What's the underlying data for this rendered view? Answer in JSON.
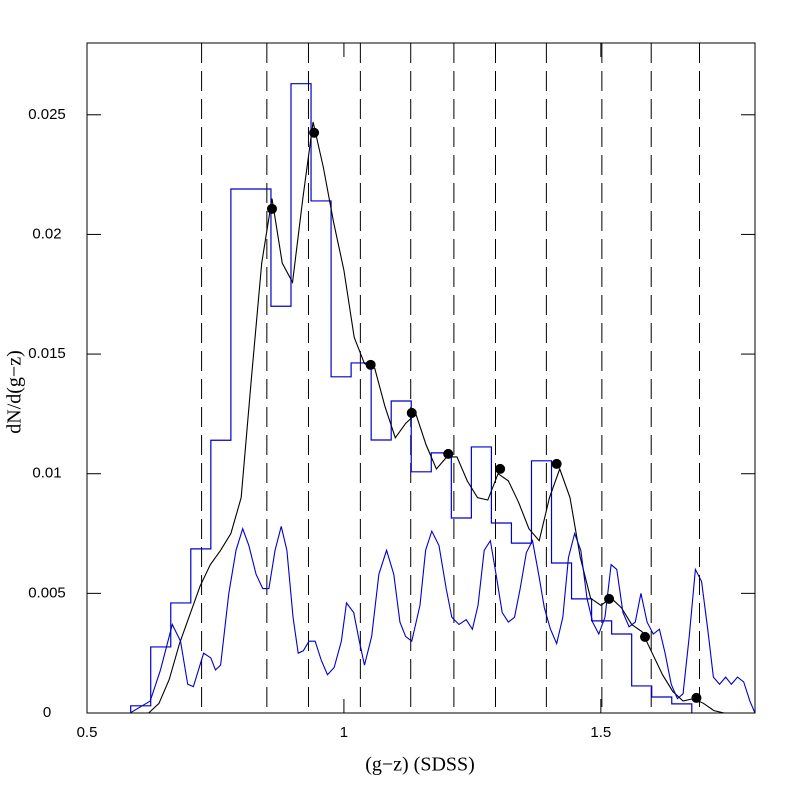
{
  "chart_data": {
    "type": "histogram",
    "x_label": "(g−z)  (SDSS)",
    "y_label": "dN/d(g−z)",
    "xlim": [
      0.5,
      1.8
    ],
    "ylim": [
      0,
      0.028
    ],
    "xticks": [
      0.5,
      1,
      1.5
    ],
    "yticks": [
      0,
      0.005,
      0.01,
      0.015,
      0.02,
      0.025
    ],
    "color": "#0000cc",
    "bins": [
      0.585,
      0.624,
      0.663,
      0.702,
      0.741,
      0.78,
      0.819,
      0.858,
      0.897,
      0.936,
      0.975,
      1.014,
      1.053,
      1.092,
      1.131,
      1.17,
      1.209,
      1.248,
      1.287,
      1.326,
      1.365,
      1.404,
      1.443,
      1.482,
      1.521,
      1.56,
      1.599,
      1.638,
      1.677
    ],
    "counts": [
      0.0003,
      0.00276,
      0.0046,
      0.00686,
      0.0114,
      0.0219,
      0.0219,
      0.017,
      0.0263,
      0.0214,
      0.01405,
      0.01463,
      0.01141,
      0.01304,
      0.01008,
      0.01087,
      0.00815,
      0.01112,
      0.00794,
      0.0071,
      0.01054,
      0.00627,
      0.00477,
      0.00385,
      0.0033,
      0.00113,
      0.00067,
      0.00038
    ],
    "series": [
      {
        "color": "#000000",
        "x": [
          0.5,
          0.62,
          0.64,
          0.66,
          0.68,
          0.7,
          0.72,
          0.74,
          0.76,
          0.78,
          0.8,
          0.82,
          0.84,
          0.86,
          0.88,
          0.9,
          0.92,
          0.94,
          0.96,
          0.98,
          1.0,
          1.02,
          1.04,
          1.06,
          1.08,
          1.1,
          1.12,
          1.14,
          1.16,
          1.18,
          1.2,
          1.22,
          1.24,
          1.26,
          1.28,
          1.3,
          1.32,
          1.34,
          1.36,
          1.38,
          1.4,
          1.42,
          1.44,
          1.46,
          1.48,
          1.5,
          1.52,
          1.54,
          1.56,
          1.58,
          1.6,
          1.62,
          1.64,
          1.66,
          1.68,
          1.7,
          1.72,
          1.74,
          1.8
        ],
        "values": [
          0,
          0,
          0.0004,
          0.0014,
          0.0029,
          0.0041,
          0.0053,
          0.0062,
          0.0068,
          0.0075,
          0.009,
          0.014,
          0.0188,
          0.0215,
          0.0188,
          0.018,
          0.0215,
          0.0247,
          0.0228,
          0.0205,
          0.0185,
          0.0157,
          0.0146,
          0.0144,
          0.0128,
          0.0115,
          0.0121,
          0.0125,
          0.0112,
          0.0102,
          0.0107,
          0.0107,
          0.0097,
          0.009,
          0.0089,
          0.01,
          0.0097,
          0.0088,
          0.0077,
          0.0072,
          0.009,
          0.0102,
          0.009,
          0.0065,
          0.0048,
          0.0045,
          0.0048,
          0.0044,
          0.0037,
          0.0034,
          0.0025,
          0.0016,
          0.0009,
          0.0005,
          0.0006,
          0.0004,
          0.0001,
          0,
          0
        ]
      },
      {
        "color": "#0000cc",
        "x": [
          0.5,
          0.584,
          0.623,
          0.643,
          0.666,
          0.682,
          0.696,
          0.707,
          0.727,
          0.741,
          0.75,
          0.76,
          0.776,
          0.79,
          0.803,
          0.815,
          0.829,
          0.842,
          0.854,
          0.866,
          0.878,
          0.889,
          0.901,
          0.911,
          0.921,
          0.932,
          0.944,
          0.956,
          0.968,
          0.981,
          0.995,
          1.005,
          1.019,
          1.03,
          1.04,
          1.054,
          1.068,
          1.083,
          1.097,
          1.109,
          1.12,
          1.132,
          1.148,
          1.159,
          1.171,
          1.185,
          1.199,
          1.21,
          1.224,
          1.238,
          1.25,
          1.261,
          1.273,
          1.285,
          1.296,
          1.308,
          1.32,
          1.332,
          1.343,
          1.355,
          1.367,
          1.379,
          1.39,
          1.402,
          1.414,
          1.426,
          1.437,
          1.449,
          1.461,
          1.473,
          1.484,
          1.496,
          1.508,
          1.52,
          1.531,
          1.543,
          1.555,
          1.567,
          1.578,
          1.59,
          1.602,
          1.614,
          1.625,
          1.637,
          1.649,
          1.66,
          1.672,
          1.684,
          1.696,
          1.708,
          1.719,
          1.731,
          1.743,
          1.754,
          1.766,
          1.778,
          1.79,
          1.8
        ],
        "values": [
          0,
          0,
          0.0005,
          0.0018,
          0.0037,
          0.003,
          0.0012,
          0.0011,
          0.0025,
          0.0023,
          0.0018,
          0.002,
          0.005,
          0.0068,
          0.0077,
          0.007,
          0.0058,
          0.0052,
          0.0052,
          0.0068,
          0.0078,
          0.0068,
          0.004,
          0.0025,
          0.0026,
          0.003,
          0.003,
          0.0022,
          0.0016,
          0.0019,
          0.003,
          0.0046,
          0.0042,
          0.003,
          0.002,
          0.0032,
          0.0058,
          0.0068,
          0.0058,
          0.0038,
          0.0032,
          0.003,
          0.0045,
          0.0068,
          0.0076,
          0.007,
          0.0052,
          0.004,
          0.0037,
          0.0039,
          0.0035,
          0.0045,
          0.0068,
          0.0072,
          0.0058,
          0.0042,
          0.0038,
          0.004,
          0.0052,
          0.0067,
          0.0072,
          0.0058,
          0.0044,
          0.0035,
          0.0029,
          0.004,
          0.0065,
          0.0075,
          0.0068,
          0.0048,
          0.0038,
          0.0033,
          0.004,
          0.0062,
          0.006,
          0.0042,
          0.0036,
          0.0038,
          0.005,
          0.0038,
          0.0033,
          0.0035,
          0.0025,
          0.0012,
          0.0006,
          0.0008,
          0.0032,
          0.006,
          0.0055,
          0.0035,
          0.0015,
          0.0012,
          0.0015,
          0.0012,
          0.0015,
          0.0013,
          0.0005,
          0
        ]
      }
    ],
    "points": {
      "color": "#000000",
      "x": [
        0.86,
        0.942,
        1.052,
        1.132,
        1.203,
        1.304,
        1.414,
        1.516,
        1.586,
        1.686
      ],
      "values": [
        0.02107,
        0.02425,
        0.01455,
        0.01254,
        0.01083,
        0.0102,
        0.01041,
        0.00477,
        0.00318,
        0.00063
      ]
    },
    "vlines": [
      0.723,
      0.85,
      0.931,
      1.032,
      1.13,
      1.214,
      1.295,
      1.394,
      1.502,
      1.598,
      1.692
    ]
  }
}
